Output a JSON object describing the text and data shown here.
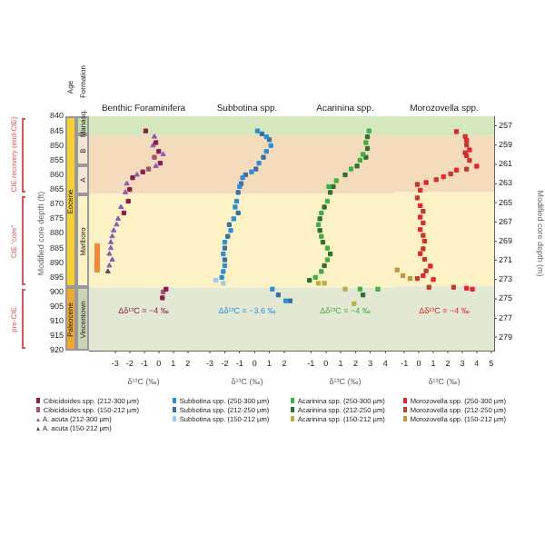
{
  "chart_data": [
    {
      "type": "scatter",
      "title": "Benthic Foraminifera",
      "xlabel": "δ¹³C (‰)",
      "ylabel": "Modified core depth (ft)",
      "xlim": [
        -4.8,
        2.7
      ],
      "xticks": [
        -3,
        -2,
        -1,
        0,
        1,
        2
      ],
      "ylim": [
        920,
        840
      ],
      "yticks": [
        840,
        845,
        850,
        855,
        860,
        865,
        870,
        875,
        880,
        885,
        890,
        895,
        900,
        905,
        910,
        915,
        920
      ],
      "marker": "square",
      "legend": "bottom",
      "bands": [
        {
          "axis": "y",
          "from": 840,
          "to": 846.5,
          "color": "#d6e6bd"
        },
        {
          "axis": "y",
          "from": 846.5,
          "to": 866.5,
          "color": "#f3dbbb"
        },
        {
          "axis": "y",
          "from": 866.5,
          "to": 898.5,
          "color": "#fcf2c6"
        },
        {
          "axis": "y",
          "from": 898.5,
          "to": 920,
          "color": "#e3e8d5"
        }
      ],
      "annotations": [
        "Δδ¹³C = −4 ‰",
        "Age",
        "Formation",
        "Eocene",
        "Paleocene",
        "Manasq.",
        "B",
        "A",
        "Marlboro",
        "Vincentown",
        "CIE recovery (end-CIE)",
        "CIE “core”",
        "pre-CIE"
      ],
      "series": [
        {
          "name": "Cibicidoides spp. (212-300 µm)",
          "color": "#8e1b4e",
          "x": [
            -0.9,
            -0.2,
            0.0,
            0.1,
            -1.1,
            -1.8,
            -2.0,
            -2.1,
            -2.4,
            0.5,
            0.25
          ],
          "values": [
            845,
            849,
            852,
            856,
            859,
            861,
            865,
            869,
            873,
            899,
            902
          ]
        },
        {
          "name": "Cibicidoides spp. (150-212 µm)",
          "color": "#a0526e",
          "x": [
            -0.3,
            -0.7,
            0.3
          ],
          "values": [
            854,
            858,
            900
          ]
        },
        {
          "name": "A. acuta (212-300 µm)",
          "color": "#8a5cb8",
          "marker": "triangle",
          "x": [
            -0.3,
            -0.4,
            0.3,
            -0.2,
            -1.5,
            -2.2,
            -2.3,
            -2.6,
            -2.8,
            -2.9,
            -3.1,
            -3.2,
            -3.3,
            -3.3,
            -3.4,
            -3.2,
            -3.4
          ],
          "values": [
            847,
            850,
            853,
            857,
            860,
            863,
            866,
            871,
            875,
            877,
            879,
            881,
            883,
            885,
            887,
            889,
            891
          ]
        },
        {
          "name": "A. acuta (150-212 µm)",
          "color": "#555555",
          "marker": "triangle",
          "x": [
            -3.5
          ],
          "values": [
            893
          ]
        }
      ]
    },
    {
      "type": "scatter",
      "title": "Subbotina spp.",
      "xlabel": "δ¹³C (‰)",
      "xlim": [
        -3.8,
        2.8
      ],
      "xticks": [
        -3,
        -2,
        -1,
        0,
        1,
        2
      ],
      "ylim": [
        920,
        840
      ],
      "tick_labels": "x",
      "marker": "square",
      "legend": "bottom",
      "bands": [
        {
          "axis": "y",
          "from": 840,
          "to": 846.5,
          "color": "#d6e6bd"
        },
        {
          "axis": "y",
          "from": 846.5,
          "to": 866.5,
          "color": "#f3dbbb"
        },
        {
          "axis": "y",
          "from": 866.5,
          "to": 898.5,
          "color": "#fcf2c6"
        },
        {
          "axis": "y",
          "from": 898.5,
          "to": 920,
          "color": "#e3e8d5"
        }
      ],
      "annotations": [
        "Δδ¹³C = −3.6 ‰"
      ],
      "series": [
        {
          "name": "Subbotina spp. (250-300 µm)",
          "color": "#2b8fd8",
          "x": [
            0.2,
            0.8,
            1.1,
            0.8,
            0.3,
            -0.2,
            -0.8,
            -1.0,
            -1.2,
            -1.3,
            -1.4,
            -1.6,
            -2.0,
            -2.1,
            -2.0,
            -2.1,
            -2.2,
            1.2,
            2.1
          ],
          "values": [
            845,
            847,
            850,
            852,
            856,
            859,
            861,
            864,
            869,
            871,
            875,
            879,
            883,
            887,
            891,
            893,
            895,
            899,
            903
          ]
        },
        {
          "name": "Subbotina spp. (212-250 µm)",
          "color": "#3b6ea5",
          "x": [
            0.5,
            1.0,
            null,
            0.6,
            0.1,
            -0.6,
            -0.9,
            -1.1,
            -1.1,
            -1.7,
            -1.8,
            -2.0,
            -2.0,
            1.6,
            2.4
          ],
          "values": [
            846,
            848,
            null,
            854,
            858,
            860,
            863,
            866,
            873,
            877,
            881,
            885,
            889,
            901,
            903
          ]
        },
        {
          "name": "Subbotina spp. (150-212 µm)",
          "color": "#9ecae8",
          "x": [
            -2.6,
            -2.1
          ],
          "values": [
            896,
            897
          ]
        }
      ]
    },
    {
      "type": "scatter",
      "title": "Acarinina spp.",
      "xlabel": "δ¹³C (‰)",
      "xlim": [
        -2,
        4.6
      ],
      "xticks": [
        -1,
        0,
        1,
        2,
        3,
        4
      ],
      "ylim": [
        920,
        840
      ],
      "tick_labels": "x",
      "marker": "square",
      "legend": "bottom",
      "bands": [
        {
          "axis": "y",
          "from": 840,
          "to": 846.5,
          "color": "#d6e6bd"
        },
        {
          "axis": "y",
          "from": 846.5,
          "to": 866.5,
          "color": "#f3dbbb"
        },
        {
          "axis": "y",
          "from": 866.5,
          "to": 898.5,
          "color": "#fcf2c6"
        },
        {
          "axis": "y",
          "from": 898.5,
          "to": 920,
          "color": "#e3e8d5"
        }
      ],
      "annotations": [
        "Δδ¹³C = −4 ‰"
      ],
      "series": [
        {
          "name": "Acarinina spp. (250-300 µm)",
          "color": "#3cb043",
          "x": [
            2.9,
            2.7,
            2.5,
            2.3,
            1.7,
            0.7,
            0.2,
            0.1,
            -0.3,
            -0.5,
            -0.3,
            0.1,
            0.1,
            -0.3,
            -0.7,
            2.3,
            3.5
          ],
          "values": [
            845,
            849,
            853,
            855,
            858,
            862,
            864,
            869,
            873,
            877,
            881,
            885,
            889,
            893,
            895,
            899,
            899
          ]
        },
        {
          "name": "Acarinina spp. (212-250 µm)",
          "color": "#2e7030",
          "x": [
            2.8,
            2.8,
            2.7,
            2.1,
            1.3,
            0.5,
            0.3,
            -0.1,
            -0.4,
            -0.4,
            -0.2,
            0.3,
            -0.1,
            -1.1,
            2.5
          ],
          "values": [
            847,
            851,
            854,
            857,
            860,
            864,
            866,
            871,
            875,
            879,
            883,
            887,
            891,
            896,
            901
          ]
        },
        {
          "name": "Acarinina spp. (150-212 µm)",
          "color": "#b8b040",
          "x": [
            -0.5,
            -0.1,
            1.3,
            1.9
          ],
          "values": [
            897,
            897,
            899,
            904
          ]
        }
      ]
    },
    {
      "type": "scatter",
      "title": "Morozovella spp.",
      "xlabel": "δ¹³C (‰)",
      "y2label": "Modified core depth (m)",
      "xlim": [
        -1.7,
        5.2
      ],
      "xticks": [
        -1,
        0,
        1,
        2,
        3,
        4,
        5
      ],
      "y2lim": [
        280.4,
        256.0
      ],
      "y2ticks": [
        257,
        259,
        261,
        263,
        265,
        267,
        269,
        271,
        273,
        275,
        277,
        279
      ],
      "marker": "square",
      "legend": "bottom",
      "bands": [
        {
          "axis": "y2",
          "from": 256.0,
          "to": 258.0,
          "color": "#d6e6bd"
        },
        {
          "axis": "y2",
          "from": 258.0,
          "to": 263.9,
          "color": "#f3dbbb"
        },
        {
          "axis": "y2",
          "from": 263.9,
          "to": 273.7,
          "color": "#fcf2c6"
        },
        {
          "axis": "y2",
          "from": 273.7,
          "to": 280.4,
          "color": "#e3e8d5"
        }
      ],
      "annotations": [
        "Δδ¹³C = −4 ‰"
      ],
      "series": [
        {
          "name": "Morozovella spp. (250-300 µm)",
          "color": "#e8232b",
          "axis": "y2",
          "x": [
            2.6,
            3.3,
            3.5,
            3.3,
            4.0,
            2.6,
            1.7,
            0.5,
            0.1,
            0.1,
            0.1,
            0.1,
            0.4,
            0.1,
            0.8,
            0.3,
            1.0,
            3.3,
            3.7
          ],
          "values": [
            257.6,
            258.5,
            259.5,
            260.1,
            261.2,
            261.6,
            262.3,
            262.9,
            263.7,
            265.3,
            266.5,
            267.8,
            269.0,
            270.3,
            271.6,
            272.6,
            273.0,
            273.9,
            274.0
          ]
        },
        {
          "name": "Morozovella spp. (212-250 µm)",
          "color": "#c0392b",
          "axis": "y2",
          "x": [
            3.2,
            3.3,
            3.2,
            3.5,
            3.3,
            2.2,
            1.2,
            -0.1,
            -0.1,
            0.3,
            0.3,
            0.3,
            0.3,
            0.4,
            0.5,
            -0.1,
            0.7,
            2.4
          ],
          "values": [
            258.1,
            259.0,
            259.8,
            260.6,
            261.5,
            262.0,
            262.6,
            263.1,
            264.5,
            265.9,
            267.1,
            268.4,
            269.8,
            270.9,
            272.1,
            272.9,
            273.8,
            273.8
          ]
        },
        {
          "name": "Morozovella spp. (150-212 µm)",
          "color": "#b89a3a",
          "axis": "y2",
          "x": [
            -1.5,
            -1.1,
            -0.6
          ],
          "values": [
            272.0,
            272.6,
            272.9
          ]
        }
      ]
    }
  ]
}
